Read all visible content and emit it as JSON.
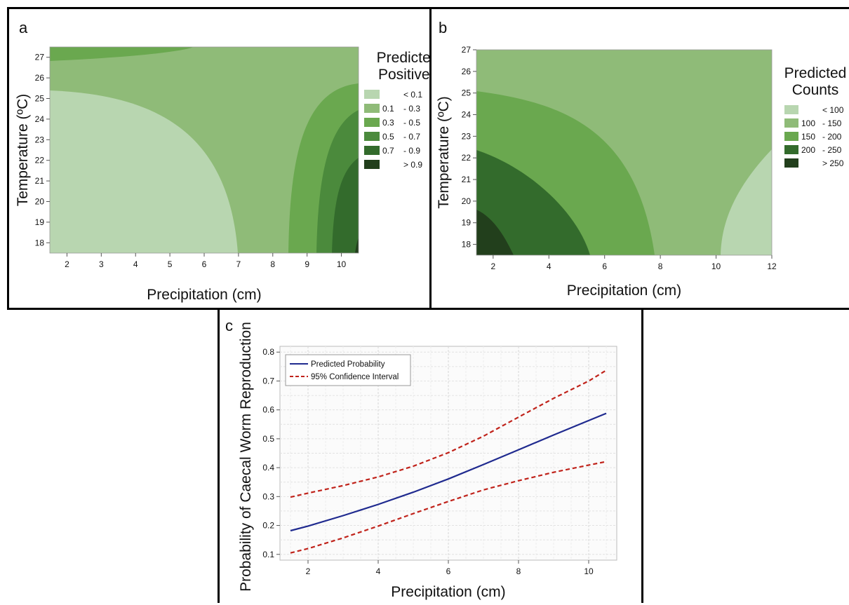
{
  "colors": {
    "lt01": "#b8d6b0",
    "c1": "#8fbb78",
    "c2": "#6aa84f",
    "c3": "#4b8a3c",
    "c4": "#336b2c",
    "c5": "#223f1c",
    "pred_line": "#1f2a8f",
    "ci_line": "#c0221a"
  },
  "chart_data": [
    {
      "panel": "a",
      "type": "heatmap",
      "xlabel": "Precipitation (cm)",
      "ylabel": "Temperature (ºC)",
      "xlim": [
        1.5,
        10.5
      ],
      "ylim": [
        17.5,
        27.5
      ],
      "xticks": [
        "2",
        "3",
        "4",
        "5",
        "6",
        "7",
        "8",
        "9",
        "10"
      ],
      "yticks": [
        "18",
        "19",
        "20",
        "21",
        "22",
        "23",
        "24",
        "25",
        "26",
        "27"
      ],
      "legend": {
        "title": [
          "Predicted",
          "Positives"
        ],
        "position": "right",
        "entries": [
          {
            "from": "",
            "to": "< 0.1",
            "color": "#b8d6b0"
          },
          {
            "from": "0.1",
            "to": "- 0.3",
            "color": "#8fbb78"
          },
          {
            "from": "0.3",
            "to": "- 0.5",
            "color": "#6aa84f"
          },
          {
            "from": "0.5",
            "to": "- 0.7",
            "color": "#4b8a3c"
          },
          {
            "from": "0.7",
            "to": "- 0.9",
            "color": "#336b2c"
          },
          {
            "from": "",
            "to": "> 0.9",
            "color": "#223f1c"
          }
        ]
      }
    },
    {
      "panel": "b",
      "type": "heatmap",
      "xlabel": "Precipitation (cm)",
      "ylabel": "Temperature (ºC)",
      "xlim": [
        1.4,
        12
      ],
      "ylim": [
        17.5,
        27
      ],
      "xticks": [
        "2",
        "4",
        "6",
        "8",
        "10",
        "12"
      ],
      "yticks": [
        "18",
        "19",
        "20",
        "21",
        "22",
        "23",
        "24",
        "25",
        "26",
        "27"
      ],
      "legend": {
        "title": [
          "Predicted",
          "Counts"
        ],
        "position": "right",
        "entries": [
          {
            "from": "",
            "to": "< 100",
            "color": "#b8d6b0"
          },
          {
            "from": "100",
            "to": "- 150",
            "color": "#8fbb78"
          },
          {
            "from": "150",
            "to": "- 200",
            "color": "#6aa84f"
          },
          {
            "from": "200",
            "to": "- 250",
            "color": "#336b2c"
          },
          {
            "from": "",
            "to": "> 250",
            "color": "#223f1c"
          }
        ]
      }
    },
    {
      "panel": "c",
      "type": "line",
      "xlabel": "Precipitation (cm)",
      "ylabel": "Probability of Caecal Worm Reproduction",
      "xlim": [
        1.2,
        10.8
      ],
      "ylim": [
        0.08,
        0.82
      ],
      "xticks": [
        2,
        4,
        6,
        8,
        10
      ],
      "yticks": [
        0.1,
        0.2,
        0.3,
        0.4,
        0.5,
        0.6,
        0.7,
        0.8
      ],
      "grid": true,
      "legend_position": "top-left",
      "x": [
        1.5,
        2,
        3,
        4,
        5,
        6,
        7,
        8,
        9,
        10,
        10.5
      ],
      "series": [
        {
          "name": "Predicted Probability",
          "style": "solid",
          "values": [
            0.182,
            0.198,
            0.234,
            0.273,
            0.315,
            0.361,
            0.411,
            0.462,
            0.513,
            0.563,
            0.588
          ]
        },
        {
          "name": "95% Confidence Interval",
          "style": "dashed",
          "values": [
            0.298,
            0.312,
            0.338,
            0.368,
            0.405,
            0.452,
            0.509,
            0.575,
            0.64,
            0.7,
            0.737
          ]
        },
        {
          "name": "",
          "style": "dashed",
          "values": [
            0.105,
            0.12,
            0.157,
            0.198,
            0.241,
            0.283,
            0.323,
            0.355,
            0.384,
            0.409,
            0.421
          ]
        }
      ]
    }
  ],
  "panels": {
    "a": {
      "label": "a"
    },
    "b": {
      "label": "b"
    },
    "c": {
      "label": "c"
    }
  }
}
